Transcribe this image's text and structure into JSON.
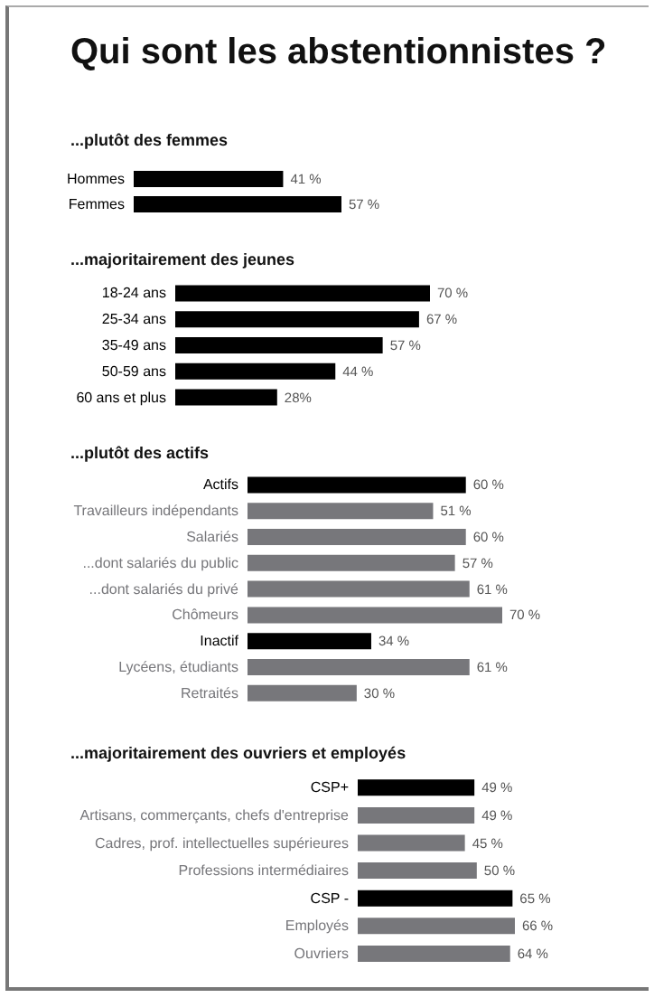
{
  "chart_data": [
    {
      "type": "bar",
      "orientation": "horizontal",
      "title": "Qui sont les abstentionnistes ?",
      "subtitle": "...plutôt des femmes",
      "categories": [
        "Hommes",
        "Femmes"
      ],
      "values": [
        41,
        57
      ],
      "colors": [
        "#000000",
        "#000000"
      ],
      "value_labels": [
        "41 %",
        "57 %"
      ]
    },
    {
      "type": "bar",
      "orientation": "horizontal",
      "title": "...majoritairement des jeunes",
      "categories": [
        "18-24 ans",
        "25-34 ans",
        "35-49 ans",
        "50-59 ans",
        "60 ans et plus"
      ],
      "values": [
        70,
        67,
        57,
        44,
        28
      ],
      "colors": [
        "#000000",
        "#000000",
        "#000000",
        "#000000",
        "#000000"
      ],
      "value_labels": [
        "70 %",
        "67 %",
        "57 %",
        "44 %",
        "28%"
      ]
    },
    {
      "type": "bar",
      "orientation": "horizontal",
      "title": "...plutôt des actifs",
      "categories": [
        "Actifs",
        "Travailleurs indépendants",
        "Salariés",
        "...dont salariés du public",
        "...dont salariés du privé",
        "Chômeurs",
        "Inactif",
        "Lycéens, étudiants",
        "Retraités"
      ],
      "values": [
        60,
        51,
        60,
        57,
        61,
        70,
        34,
        61,
        30
      ],
      "colors": [
        "#000000",
        "#77777b",
        "#77777b",
        "#77777b",
        "#77777b",
        "#77777b",
        "#000000",
        "#77777b",
        "#77777b"
      ],
      "value_labels": [
        "60 %",
        "51 %",
        "60 %",
        "57 %",
        "61 %",
        "70 %",
        "34 %",
        "61 %",
        "30 %"
      ]
    },
    {
      "type": "bar",
      "orientation": "horizontal",
      "title": "...majoritairement des ouvriers et employés",
      "categories": [
        "CSP+",
        "Artisans, commerçants, chefs d'entreprise",
        "Cadres, prof. intellectuelles supérieures",
        "Professions intermédiaires",
        "CSP -",
        "Employés",
        "Ouvriers"
      ],
      "values": [
        49,
        49,
        45,
        50,
        65,
        66,
        64
      ],
      "colors": [
        "#000000",
        "#77777b",
        "#77777b",
        "#77777b",
        "#000000",
        "#77777b",
        "#77777b"
      ],
      "value_labels": [
        "49 %",
        "49 %",
        "45 %",
        "50 %",
        "65 %",
        "66 %",
        "64 %"
      ]
    }
  ]
}
